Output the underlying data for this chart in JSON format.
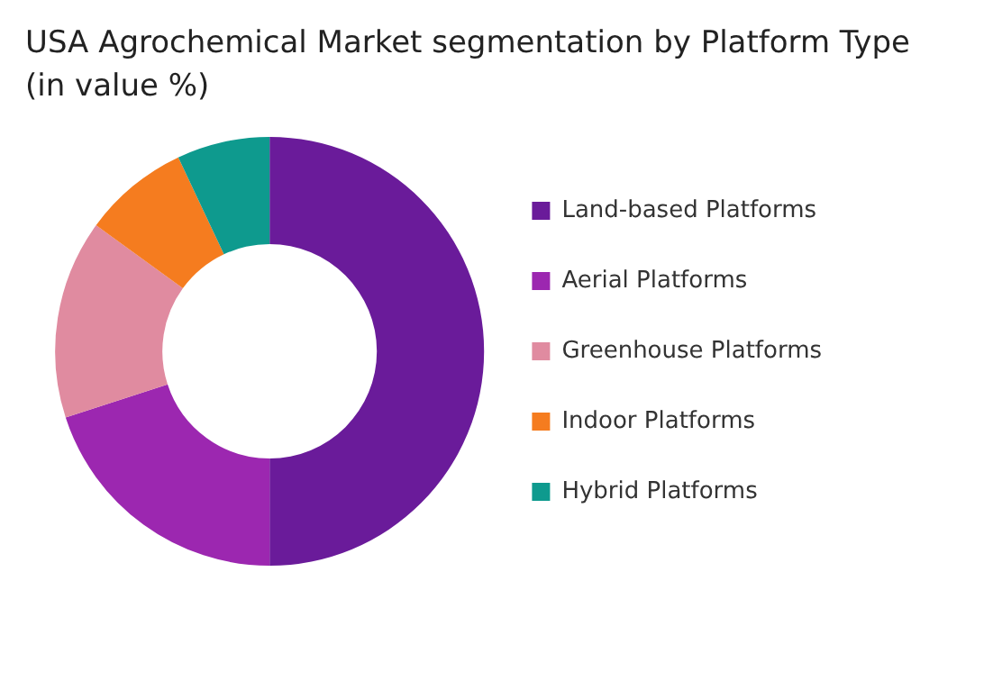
{
  "chart_data": {
    "type": "donut",
    "title": "USA Agrochemical Market segmentation by Platform Type\n(in value %)",
    "categories": [
      "Land-based Platforms",
      "Aerial Platforms",
      "Greenhouse Platforms",
      "Indoor Platforms",
      "Hybrid Platforms"
    ],
    "values": [
      50,
      20,
      15,
      8,
      7
    ],
    "colors": [
      "#6a1b9a",
      "#9c27b0",
      "#e08ba0",
      "#f57c1f",
      "#0e9a8e"
    ],
    "legend": "right"
  }
}
